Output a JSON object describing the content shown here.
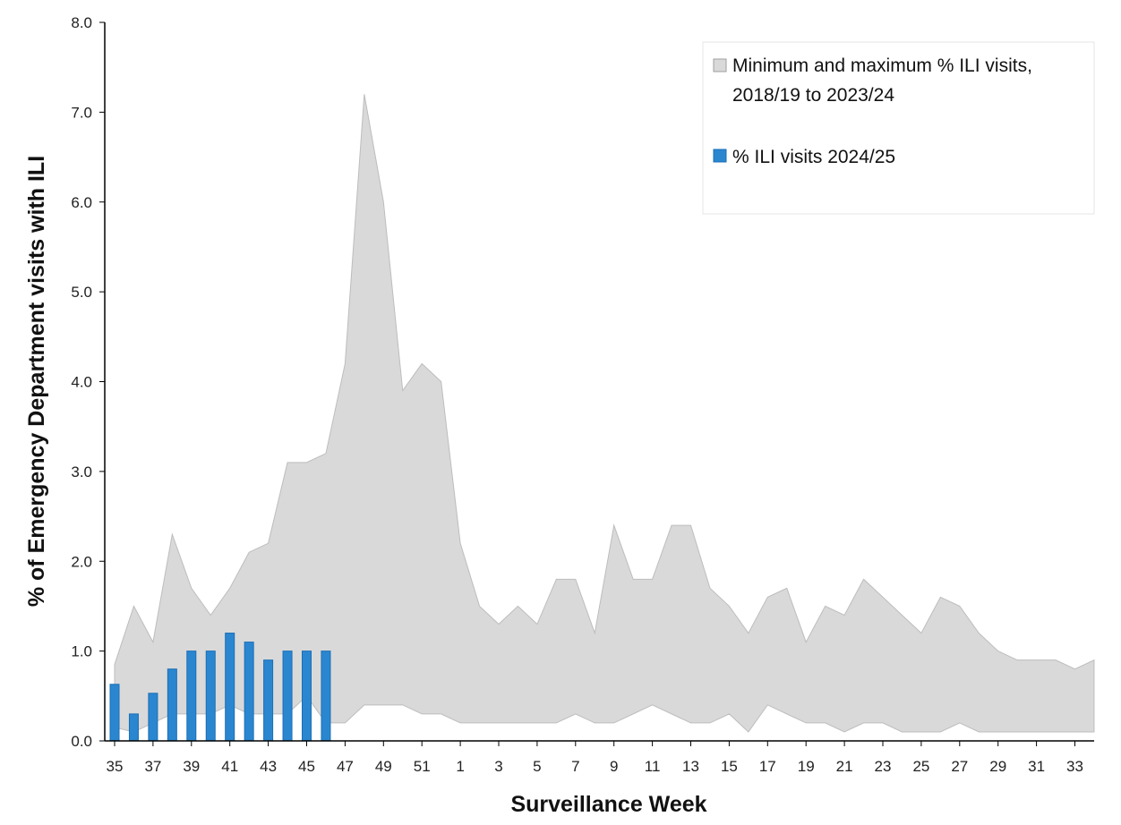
{
  "chart_data": {
    "type": "area",
    "xlabel": "Surveillance Week",
    "ylabel": "% of Emergency Department  visits with ILI",
    "ylim": [
      0,
      8
    ],
    "yticks": [
      "0.0",
      "1.0",
      "2.0",
      "3.0",
      "4.0",
      "5.0",
      "6.0",
      "7.0",
      "8.0"
    ],
    "weeks": [
      35,
      36,
      37,
      38,
      39,
      40,
      41,
      42,
      43,
      44,
      45,
      46,
      47,
      48,
      49,
      50,
      51,
      52,
      1,
      2,
      3,
      4,
      5,
      6,
      7,
      8,
      9,
      10,
      11,
      12,
      13,
      14,
      15,
      16,
      17,
      18,
      19,
      20,
      21,
      22,
      23,
      24,
      25,
      26,
      27,
      28,
      29,
      30,
      31,
      32,
      33,
      34
    ],
    "xtick_labels": [
      "35",
      "37",
      "39",
      "41",
      "43",
      "45",
      "47",
      "49",
      "51",
      "1",
      "3",
      "5",
      "7",
      "9",
      "11",
      "13",
      "15",
      "17",
      "19",
      "21",
      "23",
      "25",
      "27",
      "29",
      "31",
      "33"
    ],
    "legend_position": "top-right",
    "series": [
      {
        "name": "Minimum and maximum % ILI visits, 2018/19 to 2023/24",
        "legend_lines": [
          "Minimum and maximum % ILI visits,",
          "2018/19 to 2023/24"
        ],
        "kind": "range",
        "color": "#d9d9d9",
        "max": [
          0.85,
          1.5,
          1.1,
          2.3,
          1.7,
          1.4,
          1.7,
          2.1,
          2.2,
          3.1,
          3.1,
          3.2,
          4.2,
          7.2,
          6.0,
          3.9,
          4.2,
          4.0,
          2.2,
          1.5,
          1.3,
          1.5,
          1.3,
          1.8,
          1.8,
          1.2,
          2.4,
          1.8,
          1.8,
          2.4,
          2.4,
          1.7,
          1.5,
          1.2,
          1.6,
          1.7,
          1.1,
          1.5,
          1.4,
          1.8,
          1.6,
          1.4,
          1.2,
          1.6,
          1.5,
          1.2,
          1.0,
          0.9,
          0.9,
          0.9,
          0.8,
          0.9
        ],
        "min": [
          0.15,
          0.1,
          0.2,
          0.3,
          0.3,
          0.3,
          0.4,
          0.3,
          0.3,
          0.3,
          0.5,
          0.2,
          0.2,
          0.4,
          0.4,
          0.4,
          0.3,
          0.3,
          0.2,
          0.2,
          0.2,
          0.2,
          0.2,
          0.2,
          0.3,
          0.2,
          0.2,
          0.3,
          0.4,
          0.3,
          0.2,
          0.2,
          0.3,
          0.1,
          0.4,
          0.3,
          0.2,
          0.2,
          0.1,
          0.2,
          0.2,
          0.1,
          0.1,
          0.1,
          0.2,
          0.1,
          0.1,
          0.1,
          0.1,
          0.1,
          0.1,
          0.1
        ]
      },
      {
        "name": "% ILI visits 2024/25",
        "kind": "bar",
        "color": "#2b86d0",
        "weeks": [
          35,
          36,
          37,
          38,
          39,
          40,
          41,
          42,
          43,
          44,
          45,
          46
        ],
        "values": [
          0.63,
          0.3,
          0.53,
          0.8,
          1.0,
          1.0,
          1.2,
          1.1,
          0.9,
          1.0,
          1.0,
          1.0
        ]
      }
    ]
  }
}
